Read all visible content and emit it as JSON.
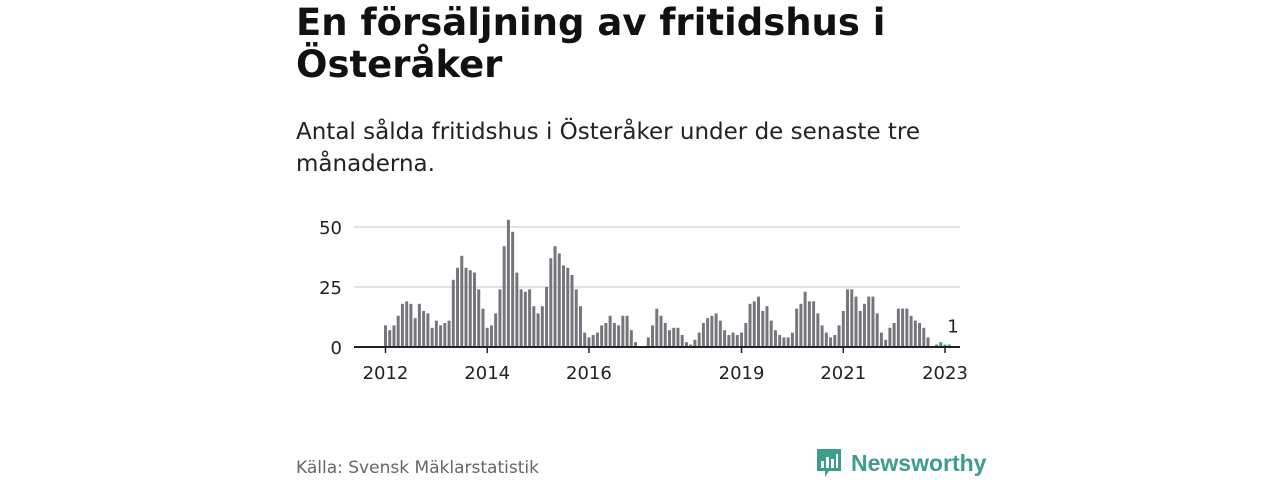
{
  "title": "En försäljning av fritidshus i Österåker",
  "subtitle": "Antal sålda fritidshus i Österåker under de senaste tre månaderna.",
  "source": "Källa: Svensk Mäklarstatistik",
  "brand": {
    "name": "Newsworthy",
    "icon": "newsworthy-logo-icon",
    "color": "#3c9d8c"
  },
  "colors": {
    "bar": "#75757c",
    "highlight": "#3c9d8c",
    "grid": "#d9d9d9",
    "axis": "#222222"
  },
  "chart_data": {
    "type": "bar",
    "title": "",
    "xlabel": "",
    "ylabel": "",
    "ylim": [
      0,
      55
    ],
    "yticks": [
      0,
      25,
      50
    ],
    "x_start": "2012-01",
    "x_end": "2023-02",
    "xticks": [
      {
        "label": "2012",
        "month": "2012-01"
      },
      {
        "label": "2014",
        "month": "2014-01"
      },
      {
        "label": "2016",
        "month": "2016-01"
      },
      {
        "label": "2019",
        "month": "2019-01"
      },
      {
        "label": "2021",
        "month": "2021-01"
      },
      {
        "label": "2023",
        "month": "2023-01"
      }
    ],
    "series": [
      {
        "name": "Antal sålda fritidshus",
        "start": "2012-01",
        "values": [
          9,
          7,
          9,
          13,
          18,
          19,
          18,
          12,
          18,
          15,
          14,
          8,
          11,
          9,
          10,
          11,
          28,
          33,
          38,
          33,
          32,
          31,
          24,
          16,
          8,
          9,
          14,
          24,
          42,
          53,
          48,
          31,
          24,
          23,
          24,
          17,
          14,
          17,
          25,
          37,
          42,
          39,
          34,
          33,
          30,
          24,
          17,
          6,
          4,
          5,
          6,
          9,
          10,
          13,
          10,
          9,
          13,
          13,
          7,
          2,
          0,
          0,
          4,
          9,
          16,
          13,
          10,
          7,
          8,
          8,
          5,
          2,
          1,
          3,
          6,
          10,
          12,
          13,
          14,
          11,
          7,
          5,
          6,
          5,
          6,
          10,
          18,
          19,
          21,
          15,
          17,
          11,
          7,
          5,
          4,
          4,
          6,
          16,
          18,
          23,
          19,
          19,
          14,
          9,
          6,
          4,
          5,
          9,
          15,
          24,
          24,
          21,
          15,
          18,
          21,
          21,
          14,
          6,
          3,
          8,
          10,
          16,
          16,
          16,
          13,
          11,
          10,
          8,
          4,
          0,
          1,
          2,
          1,
          1
        ]
      }
    ],
    "annotations": [
      {
        "month": "2023-01",
        "value": 1,
        "label": "1"
      }
    ],
    "highlight_last_n": 3
  }
}
